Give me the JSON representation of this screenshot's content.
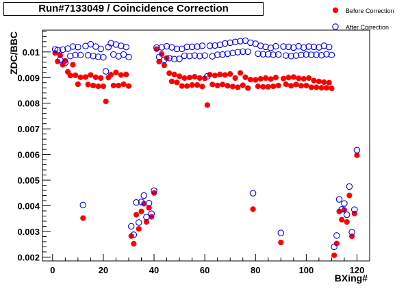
{
  "chart_data": {
    "type": "scatter",
    "title": "Run#7133049 / Coincidence Correction",
    "xlabel": "BXing#",
    "ylabel": "ZDC/BBC",
    "xlim": [
      -4,
      125
    ],
    "ylim": [
      0.00185,
      0.01085
    ],
    "xticks": [
      0,
      20,
      40,
      60,
      80,
      100,
      120
    ],
    "yticks": [
      0.002,
      0.003,
      0.004,
      0.005,
      0.006,
      0.007,
      0.008,
      0.009,
      0.01
    ],
    "ytick_labels": [
      "0.002",
      "0.003",
      "0.004",
      "0.005",
      "0.006",
      "0.007",
      "0.008",
      "0.009",
      "0.01"
    ],
    "legend_position": "top-right",
    "colors": {
      "before": "#ff0000",
      "after": "#0000ff"
    },
    "series": [
      {
        "name": "Before Correction",
        "marker": "filled-circle",
        "points": [
          [
            1,
            0.00996
          ],
          [
            2,
            0.00963
          ],
          [
            3,
            0.00987
          ],
          [
            4,
            0.0095
          ],
          [
            5,
            0.00965
          ],
          [
            6,
            0.00922
          ],
          [
            7,
            0.00908
          ],
          [
            8,
            0.0095
          ],
          [
            9,
            0.00909
          ],
          [
            10,
            0.00874
          ],
          [
            11,
            0.00901
          ],
          [
            12,
            0.00352
          ],
          [
            13,
            0.00902
          ],
          [
            14,
            0.00873
          ],
          [
            15,
            0.0091
          ],
          [
            16,
            0.00869
          ],
          [
            17,
            0.00901
          ],
          [
            18,
            0.00866
          ],
          [
            19,
            0.00898
          ],
          [
            20,
            0.00866
          ],
          [
            21,
            0.00807
          ],
          [
            22,
            0.009
          ],
          [
            23,
            0.00911
          ],
          [
            24,
            0.00869
          ],
          [
            25,
            0.0092
          ],
          [
            26,
            0.00869
          ],
          [
            27,
            0.0091
          ],
          [
            28,
            0.00874
          ],
          [
            29,
            0.00912
          ],
          [
            30,
            0.00867
          ],
          [
            31,
            0.00282
          ],
          [
            32,
            0.00252
          ],
          [
            33,
            0.00365
          ],
          [
            34,
            0.0031
          ],
          [
            35,
            0.00378
          ],
          [
            36,
            0.00408
          ],
          [
            37,
            0.00337
          ],
          [
            38,
            0.00392
          ],
          [
            39,
            0.00357
          ],
          [
            40,
            0.0045
          ],
          [
            41,
            0.01011
          ],
          [
            42,
            0.00962
          ],
          [
            43,
            0.00992
          ],
          [
            44,
            0.00948
          ],
          [
            45,
            0.00976
          ],
          [
            46,
            0.00917
          ],
          [
            47,
            0.00885
          ],
          [
            48,
            0.00912
          ],
          [
            49,
            0.00881
          ],
          [
            50,
            0.00905
          ],
          [
            51,
            0.00867
          ],
          [
            52,
            0.00898
          ],
          [
            53,
            0.00867
          ],
          [
            54,
            0.009
          ],
          [
            55,
            0.00871
          ],
          [
            56,
            0.00903
          ],
          [
            57,
            0.00871
          ],
          [
            58,
            0.00898
          ],
          [
            59,
            0.00865
          ],
          [
            60,
            0.00897
          ],
          [
            61,
            0.00793
          ],
          [
            62,
            0.00911
          ],
          [
            63,
            0.00873
          ],
          [
            64,
            0.00908
          ],
          [
            65,
            0.00869
          ],
          [
            66,
            0.00912
          ],
          [
            67,
            0.00873
          ],
          [
            68,
            0.0091
          ],
          [
            69,
            0.00868
          ],
          [
            70,
            0.00914
          ],
          [
            71,
            0.00865
          ],
          [
            72,
            0.00898
          ],
          [
            73,
            0.00862
          ],
          [
            74,
            0.00918
          ],
          [
            75,
            0.0087
          ],
          [
            76,
            0.00901
          ],
          [
            77,
            0.00859
          ],
          [
            78,
            0.00892
          ],
          [
            79,
            0.00387
          ],
          [
            80,
            0.00891
          ],
          [
            81,
            0.00866
          ],
          [
            82,
            0.00895
          ],
          [
            83,
            0.00864
          ],
          [
            84,
            0.00898
          ],
          [
            85,
            0.00864
          ],
          [
            86,
            0.00894
          ],
          [
            87,
            0.00866
          ],
          [
            88,
            0.009
          ],
          [
            89,
            0.00869
          ],
          [
            90,
            0.00257
          ],
          [
            91,
            0.00896
          ],
          [
            92,
            0.00874
          ],
          [
            93,
            0.009
          ],
          [
            94,
            0.00868
          ],
          [
            95,
            0.00902
          ],
          [
            96,
            0.00873
          ],
          [
            97,
            0.00897
          ],
          [
            98,
            0.00868
          ],
          [
            99,
            0.00895
          ],
          [
            100,
            0.00869
          ],
          [
            101,
            0.00898
          ],
          [
            102,
            0.00862
          ],
          [
            103,
            0.00888
          ],
          [
            104,
            0.00862
          ],
          [
            105,
            0.00885
          ],
          [
            106,
            0.0086
          ],
          [
            107,
            0.00882
          ],
          [
            108,
            0.0086
          ],
          [
            109,
            0.0088
          ],
          [
            110,
            0.00858
          ],
          [
            111,
            0.00207
          ],
          [
            112,
            0.00253
          ],
          [
            113,
            0.00378
          ],
          [
            114,
            0.00346
          ],
          [
            115,
            0.00384
          ],
          [
            116,
            0.00337
          ],
          [
            117,
            0.0044
          ],
          [
            118,
            0.00281
          ],
          [
            119,
            0.0037
          ],
          [
            120,
            0.00597
          ]
        ]
      },
      {
        "name": "After Correction",
        "marker": "open-circle",
        "points": [
          [
            1,
            0.0101
          ],
          [
            2,
            0.01007
          ],
          [
            3,
            0.0097
          ],
          [
            4,
            0.01009
          ],
          [
            5,
            0.00958
          ],
          [
            6,
            0.01013
          ],
          [
            7,
            0.00984
          ],
          [
            8,
            0.01021
          ],
          [
            9,
            0.00988
          ],
          [
            10,
            0.01019
          ],
          [
            11,
            0.00988
          ],
          [
            12,
            0.00403
          ],
          [
            13,
            0.01023
          ],
          [
            14,
            0.00987
          ],
          [
            15,
            0.0103
          ],
          [
            16,
            0.00984
          ],
          [
            17,
            0.01021
          ],
          [
            18,
            0.00981
          ],
          [
            19,
            0.01012
          ],
          [
            20,
            0.00979
          ],
          [
            21,
            0.00924
          ],
          [
            22,
            0.01019
          ],
          [
            23,
            0.01034
          ],
          [
            24,
            0.0099
          ],
          [
            25,
            0.01029
          ],
          [
            26,
            0.00983
          ],
          [
            27,
            0.01024
          ],
          [
            28,
            0.0099
          ],
          [
            29,
            0.01019
          ],
          [
            30,
            0.0098
          ],
          [
            31,
            0.0032
          ],
          [
            32,
            0.00287
          ],
          [
            33,
            0.00413
          ],
          [
            34,
            0.00335
          ],
          [
            35,
            0.00415
          ],
          [
            36,
            0.0044
          ],
          [
            37,
            0.00356
          ],
          [
            38,
            0.0041
          ],
          [
            39,
            0.00369
          ],
          [
            40,
            0.00459
          ],
          [
            41,
            0.01017
          ],
          [
            42,
            0.0098
          ],
          [
            43,
            0.01018
          ],
          [
            44,
            0.00969
          ],
          [
            45,
            0.01022
          ],
          [
            46,
            0.00976
          ],
          [
            47,
            0.01018
          ],
          [
            48,
            0.00972
          ],
          [
            49,
            0.01012
          ],
          [
            50,
            0.00973
          ],
          [
            51,
            0.01012
          ],
          [
            52,
            0.00985
          ],
          [
            53,
            0.0102
          ],
          [
            54,
            0.00984
          ],
          [
            55,
            0.0102
          ],
          [
            56,
            0.00986
          ],
          [
            57,
            0.01021
          ],
          [
            58,
            0.00984
          ],
          [
            59,
            0.01024
          ],
          [
            60,
            0.00986
          ],
          [
            61,
            0.00905
          ],
          [
            62,
            0.01024
          ],
          [
            63,
            0.00983
          ],
          [
            64,
            0.01025
          ],
          [
            65,
            0.00989
          ],
          [
            66,
            0.01028
          ],
          [
            67,
            0.0099
          ],
          [
            68,
            0.01033
          ],
          [
            69,
            0.00993
          ],
          [
            70,
            0.01036
          ],
          [
            71,
            0.00996
          ],
          [
            72,
            0.01039
          ],
          [
            73,
            0.00999
          ],
          [
            74,
            0.01042
          ],
          [
            75,
            0.01001
          ],
          [
            76,
            0.01044
          ],
          [
            77,
            0.01001
          ],
          [
            78,
            0.01036
          ],
          [
            79,
            0.00449
          ],
          [
            80,
            0.01032
          ],
          [
            81,
            0.00993
          ],
          [
            82,
            0.01024
          ],
          [
            83,
            0.00991
          ],
          [
            84,
            0.0102
          ],
          [
            85,
            0.00991
          ],
          [
            86,
            0.01016
          ],
          [
            87,
            0.00989
          ],
          [
            88,
            0.01022
          ],
          [
            89,
            0.0099
          ],
          [
            90,
            0.00294
          ],
          [
            91,
            0.01021
          ],
          [
            92,
            0.00986
          ],
          [
            93,
            0.0102
          ],
          [
            94,
            0.00984
          ],
          [
            95,
            0.01017
          ],
          [
            96,
            0.00986
          ],
          [
            97,
            0.01022
          ],
          [
            98,
            0.00988
          ],
          [
            99,
            0.01017
          ],
          [
            100,
            0.0099
          ],
          [
            101,
            0.01021
          ],
          [
            102,
            0.00989
          ],
          [
            103,
            0.0102
          ],
          [
            104,
            0.00989
          ],
          [
            105,
            0.01018
          ],
          [
            106,
            0.00987
          ],
          [
            107,
            0.01024
          ],
          [
            108,
            0.00991
          ],
          [
            109,
            0.01019
          ],
          [
            110,
            0.00988
          ],
          [
            111,
            0.0024
          ],
          [
            112,
            0.00284
          ],
          [
            113,
            0.00425
          ],
          [
            114,
            0.00386
          ],
          [
            115,
            0.00409
          ],
          [
            116,
            0.00365
          ],
          [
            117,
            0.00475
          ],
          [
            118,
            0.00297
          ],
          [
            119,
            0.00385
          ],
          [
            120,
            0.00617
          ]
        ]
      }
    ]
  }
}
